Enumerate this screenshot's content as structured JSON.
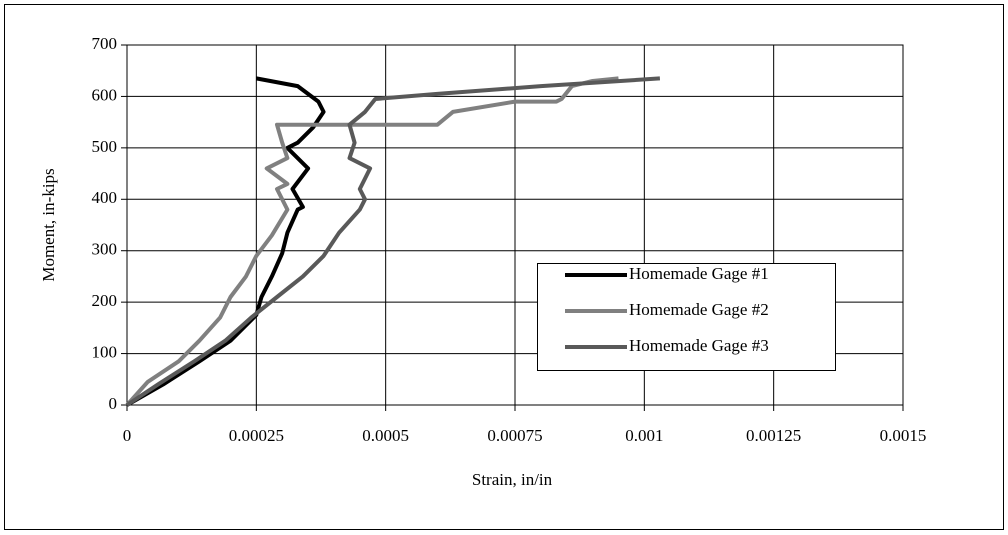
{
  "chart_data": {
    "type": "line",
    "xlabel": "Strain, in/in",
    "ylabel": "Moment, in-kips",
    "xlim": [
      0,
      0.0015
    ],
    "xticks": [
      0,
      0.00025,
      0.0005,
      0.00075,
      0.001,
      0.00125,
      0.0015
    ],
    "ylim": [
      0,
      700
    ],
    "yticks": [
      0,
      100,
      200,
      300,
      400,
      500,
      600,
      700
    ],
    "grid": true,
    "legend": "right",
    "series": [
      {
        "name": "Homemade Gage #1",
        "color": "#000000",
        "x": [
          0,
          7e-05,
          0.00014,
          0.0002,
          0.00025,
          0.00026,
          0.00028,
          0.0003,
          0.00031,
          0.00033,
          0.00034,
          0.00032,
          0.00035,
          0.00031,
          0.00033,
          0.00036,
          0.00038,
          0.00037,
          0.00033,
          0.00025
        ],
        "values": [
          0,
          40,
          85,
          125,
          175,
          210,
          250,
          295,
          335,
          380,
          385,
          420,
          460,
          500,
          510,
          540,
          570,
          590,
          620,
          635
        ]
      },
      {
        "name": "Homemade Gage #2",
        "color": "#808080",
        "x": [
          0,
          4e-05,
          0.0001,
          0.00014,
          0.00018,
          0.0002,
          0.00023,
          0.00025,
          0.00028,
          0.00031,
          0.00029,
          0.00031,
          0.00027,
          0.00031,
          0.0003,
          0.00029,
          0.00045,
          0.0006,
          0.00063,
          0.00075,
          0.00083,
          0.00084,
          0.00086,
          0.0009,
          0.00095
        ],
        "values": [
          0,
          45,
          85,
          125,
          170,
          210,
          250,
          290,
          330,
          380,
          420,
          430,
          460,
          480,
          510,
          545,
          545,
          545,
          570,
          590,
          590,
          595,
          620,
          630,
          635
        ]
      },
      {
        "name": "Homemade Gage #3",
        "color": "#595959",
        "x": [
          0,
          6e-05,
          0.00013,
          0.00019,
          0.00024,
          0.00029,
          0.00034,
          0.00038,
          0.00041,
          0.00045,
          0.00046,
          0.00045,
          0.00047,
          0.00043,
          0.00044,
          0.00043,
          0.00046,
          0.00048,
          0.0006,
          0.0008,
          0.00103
        ],
        "values": [
          0,
          40,
          85,
          125,
          170,
          210,
          250,
          290,
          335,
          380,
          400,
          420,
          460,
          480,
          510,
          545,
          570,
          595,
          605,
          620,
          635
        ]
      }
    ]
  }
}
